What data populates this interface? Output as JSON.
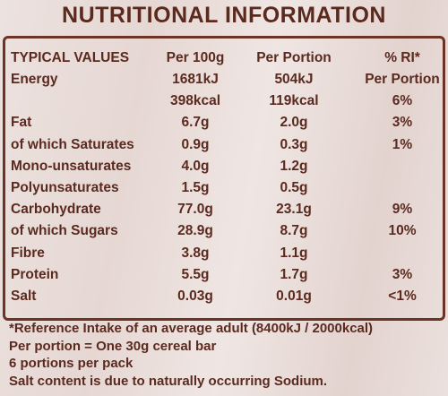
{
  "title": "NUTRITIONAL INFORMATION",
  "table": {
    "header": [
      "TYPICAL VALUES",
      "Per 100g",
      "Per Portion",
      "% RI*"
    ],
    "rows": [
      [
        "Energy",
        "1681kJ",
        "504kJ",
        "Per Portion"
      ],
      [
        null,
        "398kcal",
        "119kcal",
        "6%"
      ],
      [
        "Fat",
        "6.7g",
        "2.0g",
        "3%"
      ],
      [
        "of which Saturates",
        "0.9g",
        "0.3g",
        "1%"
      ],
      [
        "Mono-unsaturates",
        "4.0g",
        "1.2g",
        null
      ],
      [
        "Polyunsaturates",
        "1.5g",
        "0.5g",
        null
      ],
      [
        "Carbohydrate",
        "77.0g",
        "23.1g",
        "9%"
      ],
      [
        "of which Sugars",
        "28.9g",
        "8.7g",
        "10%"
      ],
      [
        "Fibre",
        "3.8g",
        "1.1g",
        null
      ],
      [
        "Protein",
        "5.5g",
        "1.7g",
        "3%"
      ],
      [
        "Salt",
        "0.03g",
        "0.01g",
        "<1%"
      ]
    ]
  },
  "footnotes": [
    "*Reference Intake of an average adult (8400kJ / 2000kcal)",
    "Per portion = One 30g cereal bar",
    "6 portions per pack",
    "Salt content is due to naturally occurring Sodium."
  ]
}
